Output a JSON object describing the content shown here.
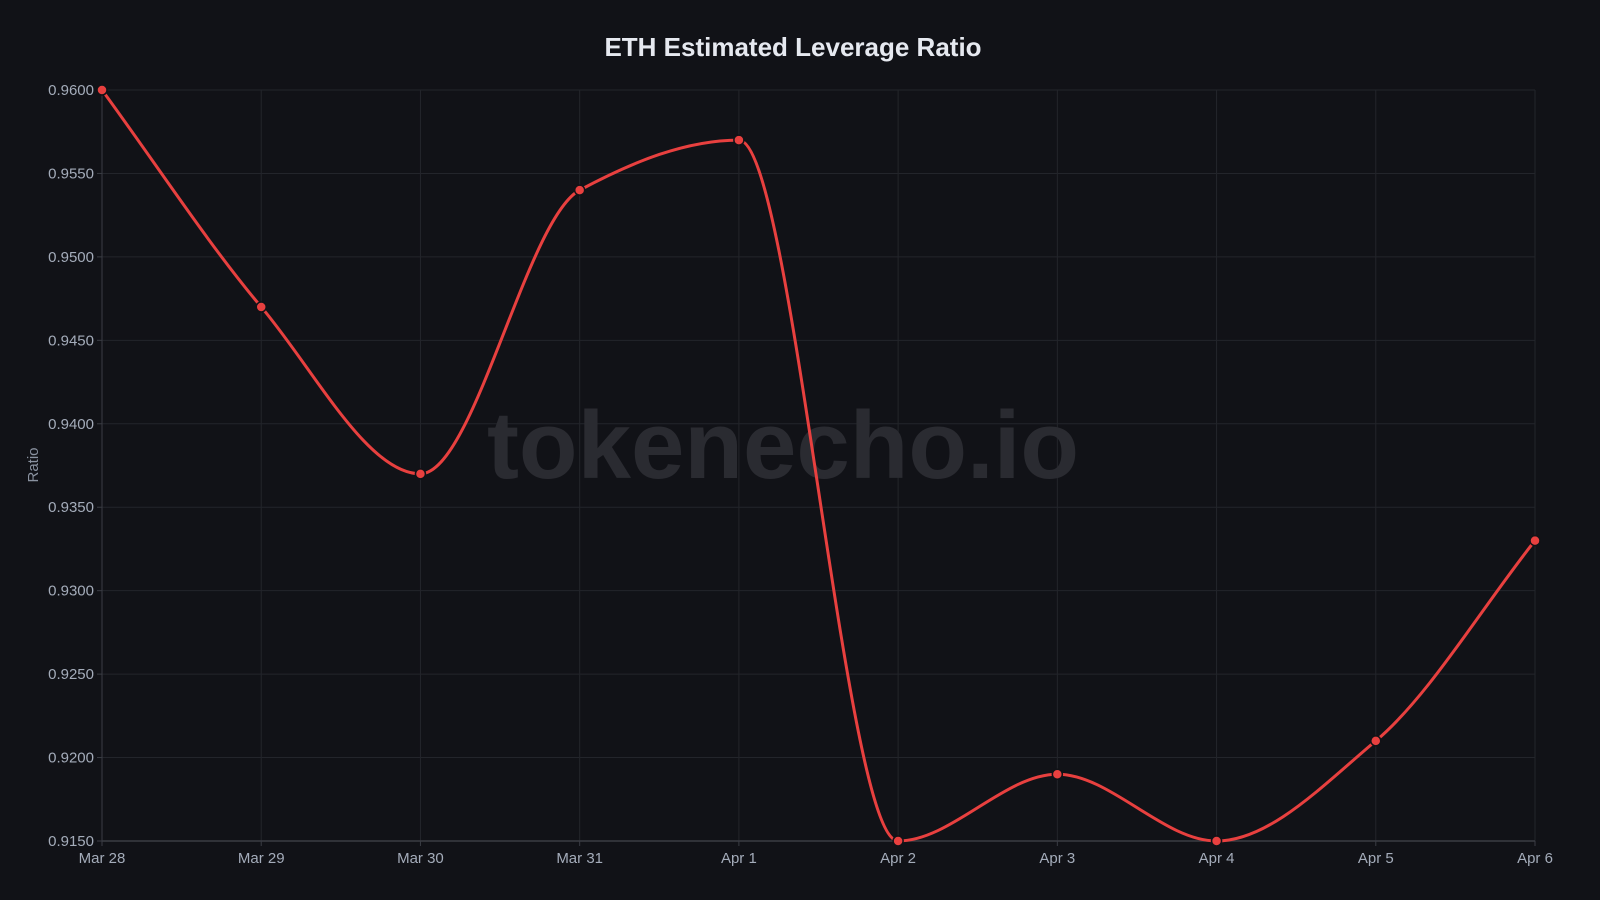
{
  "chart_data": {
    "type": "line",
    "title": "ETH Estimated Leverage Ratio",
    "xlabel": "",
    "ylabel": "Ratio",
    "categories": [
      "Mar 28",
      "Mar 29",
      "Mar 30",
      "Mar 31",
      "Apr 1",
      "Apr 2",
      "Apr 3",
      "Apr 4",
      "Apr 5",
      "Apr 6"
    ],
    "series": [
      {
        "name": "ETH Estimated Leverage Ratio",
        "values": [
          0.96,
          0.947,
          0.937,
          0.954,
          0.957,
          0.915,
          0.919,
          0.915,
          0.921,
          0.933
        ],
        "color": "#e8403f"
      }
    ],
    "ylim": [
      0.915,
      0.96
    ],
    "yticks": [
      "0.9600",
      "0.9550",
      "0.9500",
      "0.9450",
      "0.9400",
      "0.9350",
      "0.9300",
      "0.9250",
      "0.9200",
      "0.9150"
    ],
    "grid": true,
    "legend": "none",
    "smooth": true
  },
  "watermark": "tokenecho.io",
  "colors": {
    "background": "#111217",
    "grid": "#23252b",
    "line": "#e8403f",
    "tick_text": "#a4acba",
    "title_text": "#e6e9f0"
  }
}
